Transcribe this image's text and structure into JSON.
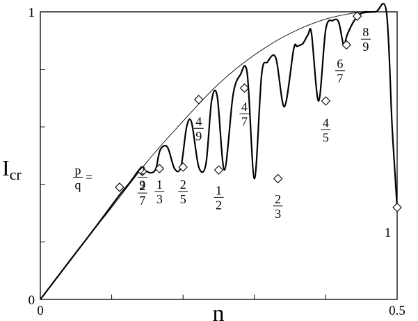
{
  "chart_data": {
    "type": "line",
    "xlabel": "n",
    "ylabel_main": "I",
    "ylabel_sub": "cr",
    "xlim": [
      0,
      0.5
    ],
    "ylim": [
      0,
      1
    ],
    "x_tick_labels": [
      {
        "value": 0,
        "label": "0"
      },
      {
        "value": 0.5,
        "label": "0.5"
      }
    ],
    "y_tick_labels": [
      {
        "value": 0,
        "label": "0"
      },
      {
        "value": 1,
        "label": "1"
      }
    ],
    "x_minor_ticks": [
      0.1,
      0.2,
      0.3,
      0.4
    ],
    "y_minor_ticks": [
      0.2,
      0.4,
      0.6,
      0.8
    ],
    "legend_prefix": {
      "num": "p",
      "den": "q",
      "eq": "="
    },
    "series": [
      {
        "role": "envelope",
        "x": [
          0,
          0.05,
          0.1,
          0.15,
          0.2,
          0.25,
          0.3,
          0.35,
          0.4,
          0.45,
          0.47,
          0.5
        ],
        "y": [
          0,
          0.165,
          0.32,
          0.48,
          0.62,
          0.75,
          0.85,
          0.925,
          0.975,
          1.0,
          1.0,
          1.0
        ]
      },
      {
        "role": "critical-current",
        "x": [
          0,
          0.04,
          0.08,
          0.11,
          0.125,
          0.14,
          0.145,
          0.155,
          0.162,
          0.168,
          0.178,
          0.188,
          0.197,
          0.205,
          0.212,
          0.222,
          0.232,
          0.24,
          0.248,
          0.258,
          0.27,
          0.28,
          0.29,
          0.3,
          0.31,
          0.318,
          0.33,
          0.342,
          0.355,
          0.36,
          0.368,
          0.375,
          0.38,
          0.39,
          0.4,
          0.41,
          0.418,
          0.425,
          0.43,
          0.44,
          0.45,
          0.47,
          0.485,
          0.493,
          0.5
        ],
        "y": [
          0,
          0.13,
          0.26,
          0.36,
          0.405,
          0.455,
          0.45,
          0.44,
          0.455,
          0.52,
          0.53,
          0.455,
          0.46,
          0.6,
          0.615,
          0.46,
          0.47,
          0.69,
          0.705,
          0.45,
          0.71,
          0.78,
          0.785,
          0.42,
          0.78,
          0.825,
          0.84,
          0.67,
          0.87,
          0.88,
          0.89,
          0.92,
          0.925,
          0.69,
          0.94,
          0.97,
          0.965,
          0.885,
          0.92,
          0.97,
          0.995,
          1.0,
          1.0,
          0.6,
          0.32
        ]
      }
    ],
    "markers": [
      {
        "x": 0.111,
        "y": 0.39,
        "num": "2",
        "den": "9",
        "lx": 0.143,
        "ly": 0.425
      },
      {
        "x": 0.143,
        "y": 0.445,
        "num": "2",
        "den": "7",
        "lx": 0.143,
        "ly": 0.37
      },
      {
        "x": 0.167,
        "y": 0.455,
        "num": "1",
        "den": "3",
        "lx": 0.167,
        "ly": 0.375
      },
      {
        "x": 0.2,
        "y": 0.46,
        "num": "2",
        "den": "5",
        "lx": 0.2,
        "ly": 0.375
      },
      {
        "x": 0.222,
        "y": 0.695,
        "num": "4",
        "den": "9",
        "lx": 0.222,
        "ly": 0.595
      },
      {
        "x": 0.25,
        "y": 0.45,
        "num": "1",
        "den": "2",
        "lx": 0.25,
        "ly": 0.355
      },
      {
        "x": 0.286,
        "y": 0.735,
        "num": "4",
        "den": "7",
        "lx": 0.286,
        "ly": 0.645
      },
      {
        "x": 0.333,
        "y": 0.42,
        "num": "2",
        "den": "3",
        "lx": 0.333,
        "ly": 0.325
      },
      {
        "x": 0.4,
        "y": 0.69,
        "num": "4",
        "den": "5",
        "lx": 0.4,
        "ly": 0.59
      },
      {
        "x": 0.429,
        "y": 0.885,
        "num": "6",
        "den": "7",
        "lx": 0.42,
        "ly": 0.795
      },
      {
        "x": 0.444,
        "y": 0.985,
        "num": "8",
        "den": "9",
        "lx": 0.456,
        "ly": 0.905
      },
      {
        "x": 0.5,
        "y": 0.32,
        "num": "1",
        "den": "",
        "lx": 0.487,
        "ly": 0.235
      }
    ]
  }
}
